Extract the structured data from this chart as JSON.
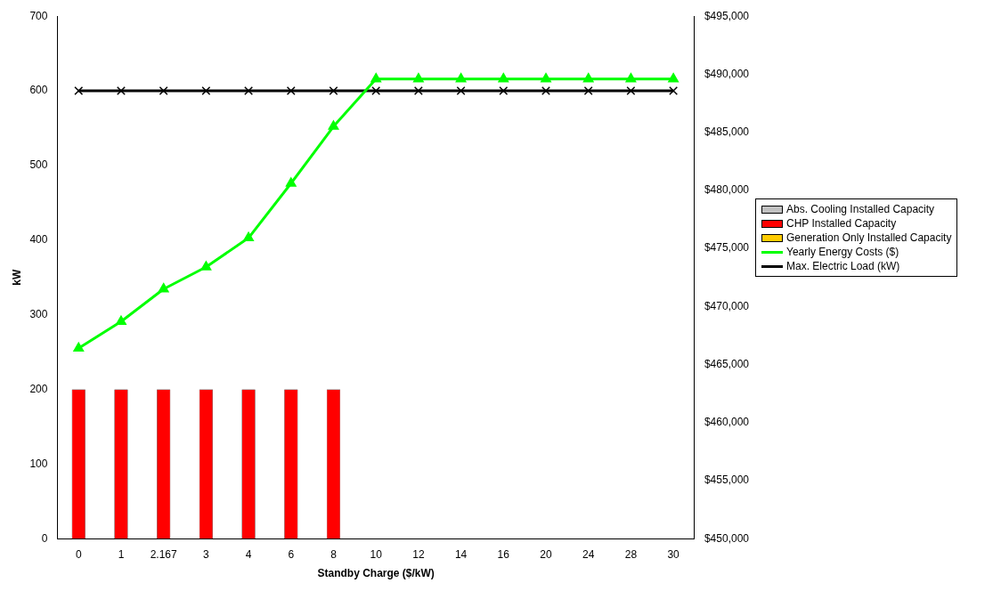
{
  "chart_data": {
    "type": "bar",
    "xlabel": "Standby Charge ($/kW)",
    "ylabel": "kW",
    "categories": [
      "0",
      "1",
      "2.167",
      "3",
      "4",
      "6",
      "8",
      "10",
      "12",
      "14",
      "16",
      "20",
      "24",
      "28",
      "30"
    ],
    "series": [
      {
        "name": "Abs. Cooling Installed Capacity",
        "type": "bar",
        "color": "#c0c0c0",
        "values": [
          0,
          0,
          0,
          0,
          0,
          0,
          0,
          0,
          0,
          0,
          0,
          0,
          0,
          0,
          0
        ]
      },
      {
        "name": "CHP Installed Capacity",
        "type": "bar",
        "color": "#ff0000",
        "values": [
          200,
          200,
          200,
          200,
          200,
          200,
          200,
          0,
          0,
          0,
          0,
          0,
          0,
          0,
          0
        ]
      },
      {
        "name": "Generation Only Installed Capacity",
        "type": "bar",
        "color": "#ffcc00",
        "values": [
          0,
          0,
          0,
          0,
          0,
          0,
          0,
          0,
          0,
          0,
          0,
          0,
          0,
          0,
          0
        ]
      },
      {
        "name": "Yearly Energy Costs ($)",
        "type": "line",
        "axis": "y2",
        "marker": "triangle",
        "color": "#00ff00",
        "values": [
          466400,
          468700,
          471500,
          473400,
          475900,
          480600,
          485500,
          489600,
          489600,
          489600,
          489600,
          489600,
          489600,
          489600,
          489600
        ]
      },
      {
        "name": "Max. Electric Load (kW)",
        "type": "line",
        "marker": "cross",
        "color": "#000000",
        "values": [
          600,
          600,
          600,
          600,
          600,
          600,
          600,
          600,
          600,
          600,
          600,
          600,
          600,
          600,
          600
        ]
      }
    ],
    "ylim": [
      0,
      700
    ],
    "yticks": [
      0,
      100,
      200,
      300,
      400,
      500,
      600,
      700
    ],
    "y2lim": [
      450000,
      495000
    ],
    "y2ticks": [
      {
        "value": 450000,
        "label": "$450,000"
      },
      {
        "value": 455000,
        "label": "$455,000"
      },
      {
        "value": 460000,
        "label": "$460,000"
      },
      {
        "value": 465000,
        "label": "$465,000"
      },
      {
        "value": 470000,
        "label": "$470,000"
      },
      {
        "value": 475000,
        "label": "$475,000"
      },
      {
        "value": 480000,
        "label": "$480,000"
      },
      {
        "value": 485000,
        "label": "$485,000"
      },
      {
        "value": 490000,
        "label": "$490,000"
      },
      {
        "value": 495000,
        "label": "$495,000"
      }
    ],
    "grid": false,
    "legend": "right"
  }
}
